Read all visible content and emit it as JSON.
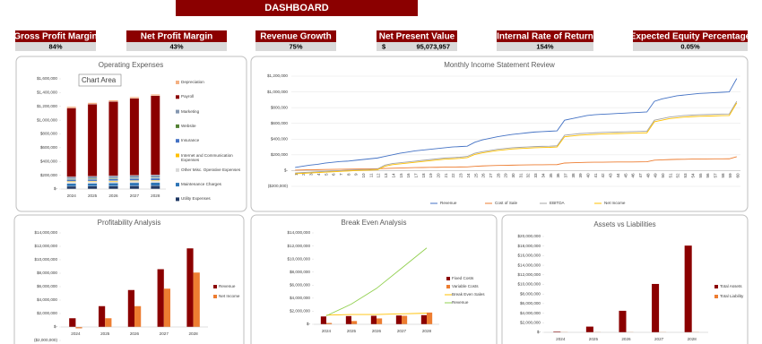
{
  "header": {
    "title": "DASHBOARD"
  },
  "kpis": [
    {
      "label": "Gross Profit Margin",
      "value": "84%"
    },
    {
      "label": "Net Profit Margin",
      "value": "43%"
    },
    {
      "label": "Revenue Growth",
      "value": "75%"
    },
    {
      "label": "Net Present Value",
      "currency": "$",
      "value": "95,073,957"
    },
    {
      "label": "Internal Rate of Return",
      "value": "154%"
    },
    {
      "label": "Expected Equity Percentage",
      "value": "0.05%"
    }
  ],
  "chart_data": [
    {
      "type": "bar",
      "title": "Operating Expenses",
      "stacked": true,
      "annotation": "Chart Area",
      "legend": "right",
      "categories": [
        "2024",
        "2025",
        "2026",
        "2027",
        "2028"
      ],
      "ylim": [
        0,
        1600000
      ],
      "yticks": [
        {
          "value": 0,
          "label": "$-"
        },
        {
          "value": 200000,
          "label": "$200,000"
        },
        {
          "value": 400000,
          "label": "$400,000"
        },
        {
          "value": 600000,
          "label": "$600,000"
        },
        {
          "value": 800000,
          "label": "$800,000"
        },
        {
          "value": 1000000,
          "label": "$1,000,000"
        },
        {
          "value": 1200000,
          "label": "$1,200,000"
        },
        {
          "value": 1400000,
          "label": "$1,400,000"
        },
        {
          "value": 1600000,
          "label": "$1,600,000"
        }
      ],
      "series": [
        {
          "name": "Depreciation",
          "color": "#f4b183",
          "values": [
            20000,
            20000,
            20000,
            20000,
            20000
          ]
        },
        {
          "name": "Payroll",
          "color": "#8b0000",
          "values": [
            1000000,
            1050000,
            1080000,
            1120000,
            1150000
          ]
        },
        {
          "name": "Marketing",
          "color": "#8497b0",
          "values": [
            30000,
            32000,
            34000,
            36000,
            38000
          ]
        },
        {
          "name": "Website",
          "color": "#548235",
          "values": [
            10000,
            10000,
            10000,
            10000,
            10000
          ]
        },
        {
          "name": "Insurance",
          "color": "#4472c4",
          "values": [
            25000,
            26000,
            27000,
            28000,
            29000
          ]
        },
        {
          "name": "Internet and Communication Expenses",
          "color": "#ffc000",
          "values": [
            12000,
            12000,
            12000,
            12000,
            12000
          ]
        },
        {
          "name": "Other Misc. Operative Expenses",
          "color": "#d9d9d9",
          "values": [
            20000,
            20000,
            20000,
            20000,
            20000
          ]
        },
        {
          "name": "Maintenance Charges",
          "color": "#2e75b6",
          "values": [
            40000,
            42000,
            44000,
            46000,
            48000
          ]
        },
        {
          "name": "Utility Expenses",
          "color": "#1f3864",
          "values": [
            40000,
            42000,
            44000,
            46000,
            48000
          ]
        }
      ]
    },
    {
      "type": "line",
      "title": "Monthly Income Statement Review",
      "grid": true,
      "legend": "bottom",
      "categories": [
        1,
        2,
        3,
        4,
        5,
        6,
        7,
        8,
        9,
        10,
        11,
        12,
        13,
        14,
        15,
        16,
        17,
        18,
        19,
        20,
        21,
        22,
        23,
        24,
        25,
        26,
        27,
        28,
        29,
        30,
        31,
        32,
        33,
        34,
        35,
        36,
        37,
        38,
        39,
        40,
        41,
        42,
        43,
        44,
        45,
        46,
        47,
        48,
        49,
        50,
        51,
        52,
        53,
        54,
        55,
        56,
        57,
        58,
        59,
        60
      ],
      "ylim": [
        -200000,
        1200000
      ],
      "yticks": [
        {
          "value": -200000,
          "label": "($200,000)"
        },
        {
          "value": 0,
          "label": "$-"
        },
        {
          "value": 200000,
          "label": "$200,000"
        },
        {
          "value": 400000,
          "label": "$400,000"
        },
        {
          "value": 600000,
          "label": "$600,000"
        },
        {
          "value": 800000,
          "label": "$800,000"
        },
        {
          "value": 1000000,
          "label": "$1,000,000"
        },
        {
          "value": 1200000,
          "label": "$1,200,000"
        }
      ],
      "series": [
        {
          "name": "Revenue",
          "color": "#4472c4",
          "values": [
            40000,
            55000,
            70000,
            80000,
            95000,
            105000,
            115000,
            120000,
            130000,
            140000,
            150000,
            160000,
            180000,
            200000,
            220000,
            235000,
            250000,
            260000,
            270000,
            280000,
            290000,
            300000,
            305000,
            310000,
            360000,
            390000,
            410000,
            430000,
            445000,
            460000,
            470000,
            480000,
            490000,
            495000,
            500000,
            505000,
            640000,
            660000,
            680000,
            700000,
            710000,
            715000,
            720000,
            725000,
            730000,
            735000,
            740000,
            745000,
            880000,
            910000,
            930000,
            950000,
            960000,
            970000,
            980000,
            985000,
            990000,
            995000,
            1000000,
            1170000
          ]
        },
        {
          "name": "Cost of Sale",
          "color": "#ed7d31",
          "values": [
            6000,
            8000,
            11000,
            12000,
            14000,
            16000,
            17000,
            18000,
            20000,
            21000,
            23000,
            24000,
            27000,
            30000,
            33000,
            35000,
            38000,
            39000,
            41000,
            42000,
            44000,
            45000,
            46000,
            47000,
            54000,
            59000,
            62000,
            65000,
            67000,
            69000,
            71000,
            72000,
            74000,
            74000,
            75000,
            76000,
            96000,
            99000,
            102000,
            105000,
            107000,
            107000,
            108000,
            109000,
            110000,
            110000,
            111000,
            112000,
            132000,
            137000,
            140000,
            143000,
            144000,
            146000,
            147000,
            148000,
            149000,
            149000,
            150000,
            176000
          ]
        },
        {
          "name": "EBITDA",
          "color": "#a5a5a5",
          "values": [
            -30000,
            -25000,
            -20000,
            -15000,
            -10000,
            -5000,
            0,
            5000,
            10000,
            12000,
            15000,
            20000,
            70000,
            90000,
            100000,
            110000,
            120000,
            130000,
            140000,
            150000,
            160000,
            165000,
            170000,
            180000,
            220000,
            240000,
            255000,
            270000,
            280000,
            290000,
            295000,
            300000,
            305000,
            308000,
            310000,
            315000,
            450000,
            460000,
            470000,
            475000,
            480000,
            485000,
            488000,
            490000,
            492000,
            495000,
            498000,
            500000,
            640000,
            660000,
            680000,
            690000,
            700000,
            705000,
            710000,
            712000,
            715000,
            718000,
            720000,
            880000
          ]
        },
        {
          "name": "Net Income",
          "color": "#ffc000",
          "values": [
            -40000,
            -35000,
            -30000,
            -25000,
            -20000,
            -15000,
            -10000,
            -5000,
            0,
            3000,
            6000,
            10000,
            55000,
            75000,
            85000,
            95000,
            105000,
            115000,
            125000,
            135000,
            145000,
            150000,
            155000,
            165000,
            205000,
            225000,
            240000,
            255000,
            265000,
            275000,
            280000,
            285000,
            290000,
            293000,
            295000,
            300000,
            430000,
            440000,
            450000,
            455000,
            460000,
            465000,
            468000,
            470000,
            472000,
            475000,
            478000,
            480000,
            620000,
            640000,
            660000,
            670000,
            680000,
            685000,
            690000,
            692000,
            695000,
            698000,
            700000,
            860000
          ]
        }
      ]
    },
    {
      "type": "bar",
      "title": "Profitability Analysis",
      "legend": "right",
      "categories": [
        "2024",
        "2025",
        "2026",
        "2027",
        "2028"
      ],
      "ylim": [
        -2000000,
        14000000
      ],
      "yticks": [
        {
          "value": -2000000,
          "label": "($2,000,000)"
        },
        {
          "value": 0,
          "label": "$-"
        },
        {
          "value": 2000000,
          "label": "$2,000,000"
        },
        {
          "value": 4000000,
          "label": "$4,000,000"
        },
        {
          "value": 6000000,
          "label": "$6,000,000"
        },
        {
          "value": 8000000,
          "label": "$8,000,000"
        },
        {
          "value": 10000000,
          "label": "$10,000,000"
        },
        {
          "value": 12000000,
          "label": "$12,000,000"
        },
        {
          "value": 14000000,
          "label": "$14,000,000"
        }
      ],
      "series": [
        {
          "name": "Revenue",
          "color": "#8b0000",
          "values": [
            1300000,
            3100000,
            5500000,
            8600000,
            11700000
          ]
        },
        {
          "name": "Net Income",
          "color": "#ed7d31",
          "values": [
            -200000,
            1300000,
            3100000,
            5700000,
            8100000
          ]
        }
      ]
    },
    {
      "type": "bar",
      "title": "Break Even Analysis",
      "legend": "right",
      "categories": [
        "2024",
        "2025",
        "2026",
        "2027",
        "2028"
      ],
      "ylim": [
        0,
        14000000
      ],
      "yticks": [
        {
          "value": 0,
          "label": "$-"
        },
        {
          "value": 2000000,
          "label": "$2,000,000"
        },
        {
          "value": 4000000,
          "label": "$4,000,000"
        },
        {
          "value": 6000000,
          "label": "$6,000,000"
        },
        {
          "value": 8000000,
          "label": "$8,000,000"
        },
        {
          "value": 10000000,
          "label": "$10,000,000"
        },
        {
          "value": 12000000,
          "label": "$12,000,000"
        },
        {
          "value": 14000000,
          "label": "$14,000,000"
        }
      ],
      "series": [
        {
          "name": "Fixed Costs",
          "color": "#8b0000",
          "values": [
            1200000,
            1260000,
            1300000,
            1350000,
            1400000
          ]
        },
        {
          "name": "Variable Costs",
          "color": "#ed7d31",
          "values": [
            200000,
            500000,
            900000,
            1300000,
            1800000
          ]
        },
        {
          "name": "Break Even Sales",
          "type": "line",
          "color": "#ffc000",
          "values": [
            1400000,
            1500000,
            1500000,
            1600000,
            1700000
          ]
        },
        {
          "name": "Revenue",
          "type": "line",
          "color": "#92d050",
          "values": [
            1300000,
            3100000,
            5500000,
            8600000,
            11700000
          ]
        }
      ]
    },
    {
      "type": "bar",
      "title": "Assets vs Liabilities",
      "legend": "right",
      "categories": [
        "2024",
        "2025",
        "2026",
        "2027",
        "2028"
      ],
      "ylim": [
        0,
        20000000
      ],
      "yticks": [
        {
          "value": 0,
          "label": "$-"
        },
        {
          "value": 2000000,
          "label": "$2,000,000"
        },
        {
          "value": 4000000,
          "label": "$4,000,000"
        },
        {
          "value": 6000000,
          "label": "$6,000,000"
        },
        {
          "value": 8000000,
          "label": "$8,000,000"
        },
        {
          "value": 10000000,
          "label": "$10,000,000"
        },
        {
          "value": 12000000,
          "label": "$12,000,000"
        },
        {
          "value": 14000000,
          "label": "$14,000,000"
        },
        {
          "value": 16000000,
          "label": "$16,000,000"
        },
        {
          "value": 18000000,
          "label": "$18,000,000"
        },
        {
          "value": 20000000,
          "label": "$20,000,000"
        }
      ],
      "series": [
        {
          "name": "Total Assets",
          "color": "#8b0000",
          "values": [
            150000,
            1200000,
            4500000,
            10100000,
            18100000
          ]
        },
        {
          "name": "Total Liability",
          "color": "#ed7d31",
          "values": [
            50000,
            50000,
            50000,
            50000,
            50000
          ]
        }
      ]
    }
  ]
}
